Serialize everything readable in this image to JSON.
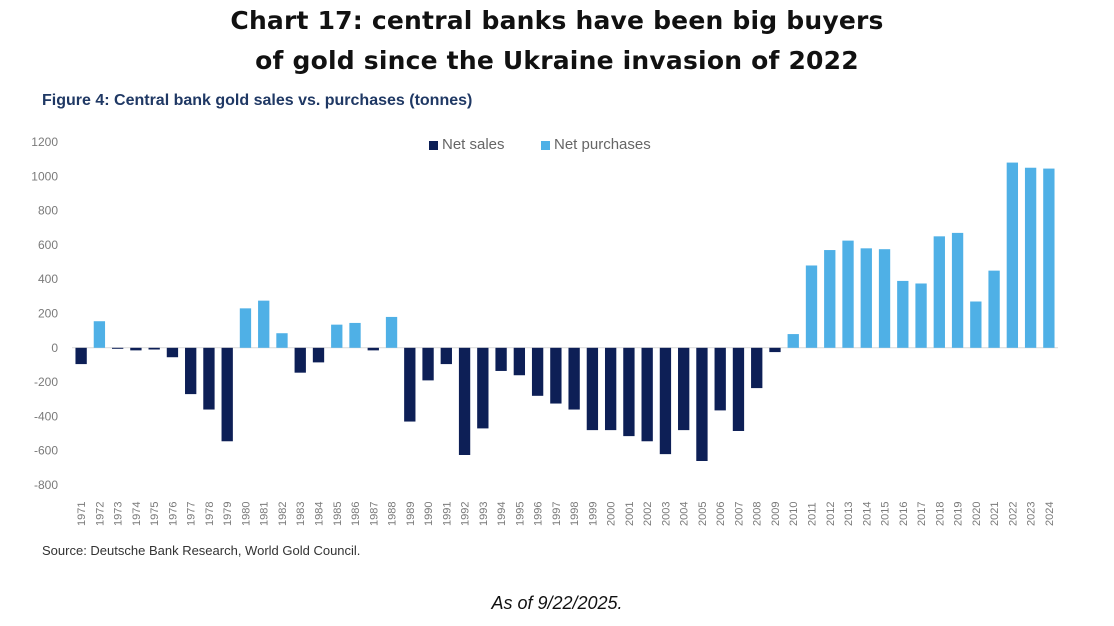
{
  "header": {
    "title_line1": "Chart 17: central banks have been big buyers",
    "title_line2": "of gold since the Ukraine invasion of 2022"
  },
  "figure_title": "Figure 4: Central bank gold sales vs. purchases (tonnes)",
  "source": "Source: Deutsche Bank Research, World Gold Council.",
  "as_of": "As of 9/22/2025.",
  "colors": {
    "net_sales": "#0d1f56",
    "net_purchases": "#4fb0e6",
    "axis_text": "#7a7a7a"
  },
  "chart_data": {
    "type": "bar",
    "title": "Figure 4: Central bank gold sales vs. purchases (tonnes)",
    "xlabel": "",
    "ylabel": "",
    "ylim": [
      -800,
      1200
    ],
    "yticks": [
      1200,
      1000,
      800,
      600,
      400,
      200,
      0,
      -200,
      -400,
      -600,
      -800
    ],
    "legend": [
      "Net sales",
      "Net purchases"
    ],
    "categories": [
      "1971",
      "1972",
      "1973",
      "1974",
      "1975",
      "1976",
      "1977",
      "1978",
      "1979",
      "1980",
      "1981",
      "1982",
      "1983",
      "1984",
      "1985",
      "1986",
      "1987",
      "1988",
      "1989",
      "1990",
      "1991",
      "1992",
      "1993",
      "1994",
      "1995",
      "1996",
      "1997",
      "1998",
      "1999",
      "2000",
      "2001",
      "2002",
      "2003",
      "2004",
      "2005",
      "2006",
      "2007",
      "2008",
      "2009",
      "2010",
      "2011",
      "2012",
      "2013",
      "2014",
      "2015",
      "2016",
      "2017",
      "2018",
      "2019",
      "2020",
      "2021",
      "2022",
      "2023",
      "2024"
    ],
    "values": [
      -95,
      155,
      -5,
      -15,
      -10,
      -55,
      -270,
      -360,
      -545,
      230,
      275,
      85,
      -145,
      -85,
      135,
      145,
      -15,
      180,
      -430,
      -190,
      -95,
      -625,
      -470,
      -135,
      -160,
      -280,
      -325,
      -360,
      -480,
      -480,
      -515,
      -545,
      -620,
      -480,
      -660,
      -365,
      -485,
      -235,
      -25,
      80,
      480,
      570,
      625,
      580,
      575,
      390,
      375,
      650,
      670,
      270,
      450,
      1080,
      1050,
      1045
    ]
  }
}
